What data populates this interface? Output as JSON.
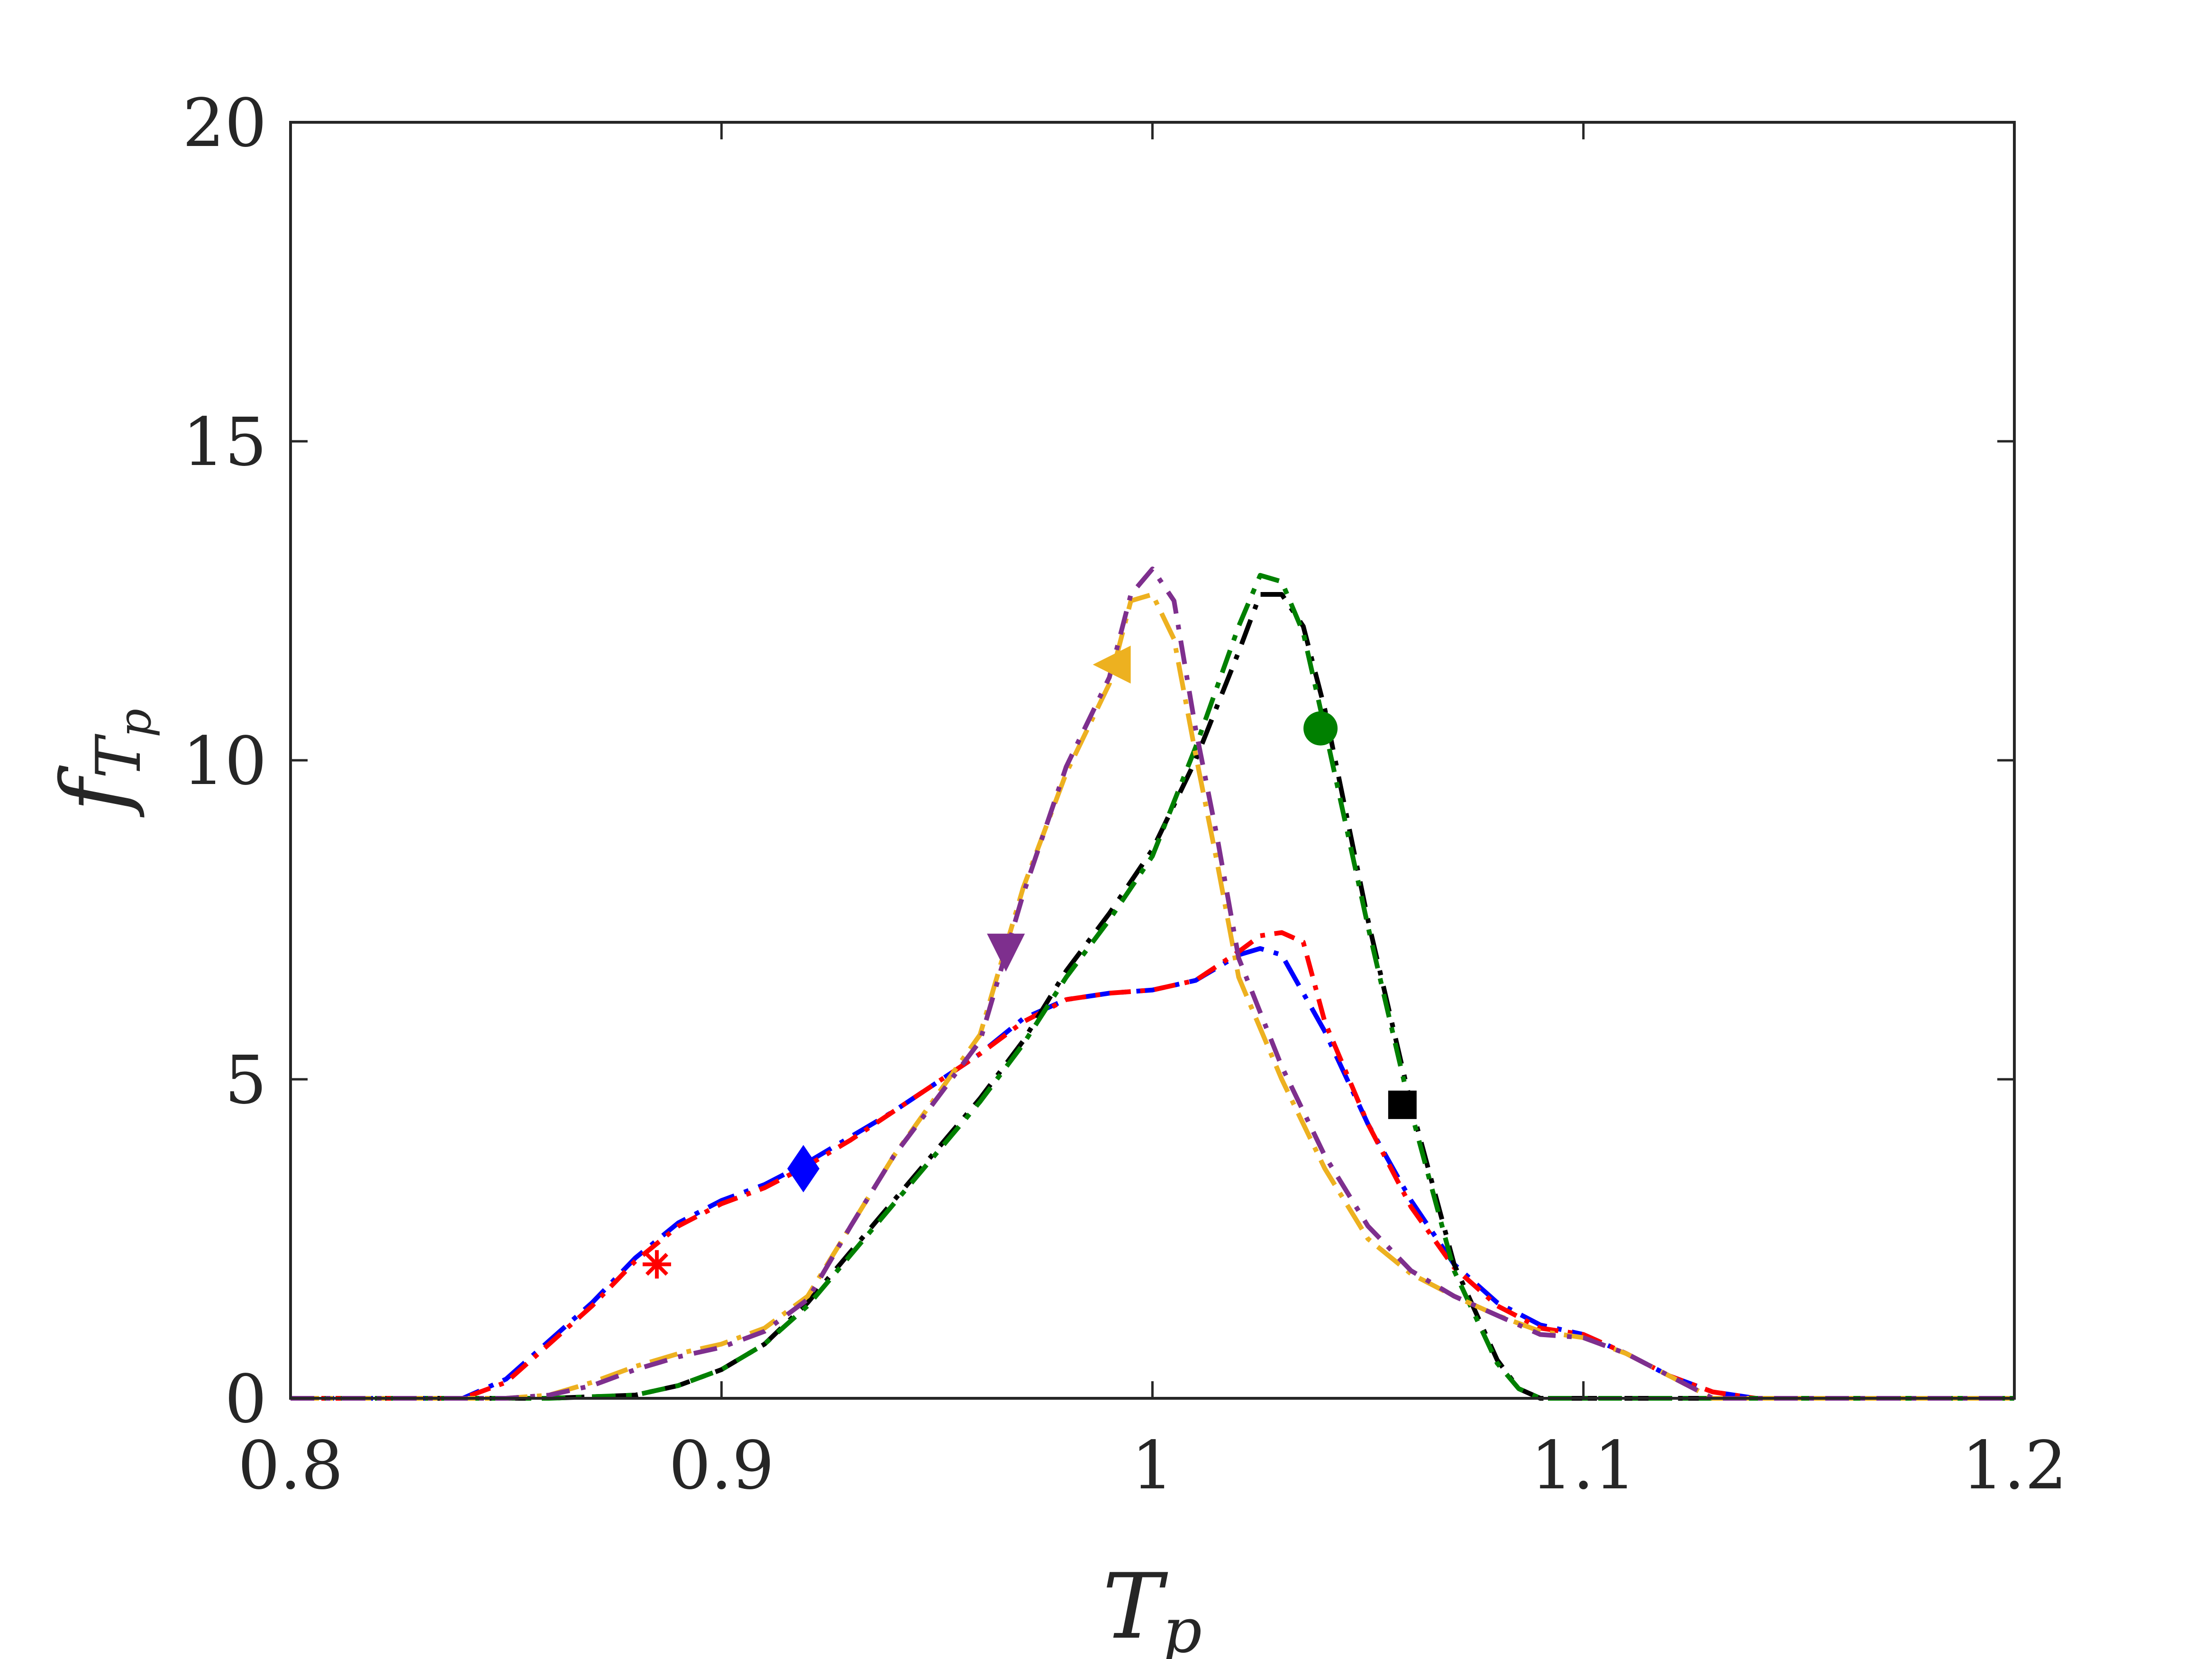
{
  "chart_data": {
    "type": "line",
    "xlabel": "T",
    "xlabel_sub": "p",
    "ylabel": "f",
    "ylabel_sub": "T",
    "ylabel_subsub": "p",
    "xlim": [
      0.8,
      1.2
    ],
    "ylim": [
      0,
      20
    ],
    "xticks": [
      0.8,
      0.9,
      1.0,
      1.1,
      1.2
    ],
    "xtick_labels": [
      "0.8",
      "0.9",
      "1",
      "1.1",
      "1.2"
    ],
    "yticks": [
      0,
      5,
      10,
      15,
      20
    ],
    "ytick_labels": [
      "0",
      "5",
      "10",
      "15",
      "20"
    ],
    "grid": false,
    "series": [
      {
        "color": "#0000ff",
        "dash": "dash-dot",
        "marker": "diamond",
        "marker_at": [
          0.919,
          3.6
        ],
        "x": [
          0.8,
          0.84,
          0.85,
          0.86,
          0.87,
          0.88,
          0.89,
          0.9,
          0.91,
          0.92,
          0.93,
          0.94,
          0.95,
          0.96,
          0.97,
          0.98,
          0.99,
          1.0,
          1.01,
          1.02,
          1.025,
          1.03,
          1.04,
          1.05,
          1.06,
          1.07,
          1.08,
          1.09,
          1.1,
          1.11,
          1.12,
          1.13,
          1.14,
          1.2
        ],
        "y": [
          0,
          0,
          0.3,
          0.9,
          1.5,
          2.2,
          2.75,
          3.1,
          3.35,
          3.7,
          4.1,
          4.5,
          4.95,
          5.4,
          5.95,
          6.25,
          6.35,
          6.4,
          6.55,
          6.95,
          7.05,
          6.95,
          5.75,
          4.3,
          3.1,
          2.1,
          1.5,
          1.15,
          1.0,
          0.7,
          0.35,
          0.1,
          0,
          0
        ]
      },
      {
        "color": "#ff0000",
        "dash": "dash-dot",
        "marker": "asterisk",
        "marker_at": [
          0.885,
          2.1
        ],
        "x": [
          0.8,
          0.84,
          0.85,
          0.86,
          0.87,
          0.88,
          0.89,
          0.9,
          0.91,
          0.92,
          0.93,
          0.94,
          0.95,
          0.96,
          0.97,
          0.98,
          0.99,
          1.0,
          1.01,
          1.02,
          1.025,
          1.03,
          1.035,
          1.04,
          1.05,
          1.06,
          1.07,
          1.08,
          1.09,
          1.1,
          1.11,
          1.12,
          1.13,
          1.14,
          1.2
        ],
        "y": [
          0,
          0,
          0.25,
          0.85,
          1.45,
          2.15,
          2.7,
          3.05,
          3.3,
          3.65,
          4.05,
          4.5,
          4.95,
          5.4,
          5.9,
          6.25,
          6.35,
          6.4,
          6.55,
          7.0,
          7.25,
          7.3,
          7.15,
          5.9,
          4.3,
          3.0,
          2.05,
          1.45,
          1.1,
          1.0,
          0.7,
          0.35,
          0.1,
          0,
          0
        ]
      },
      {
        "color": "#000000",
        "dash": "dash-dot",
        "marker": "square",
        "marker_at": [
          1.058,
          4.6
        ],
        "x": [
          0.8,
          0.86,
          0.88,
          0.89,
          0.9,
          0.91,
          0.92,
          0.93,
          0.94,
          0.95,
          0.96,
          0.97,
          0.98,
          0.99,
          1.0,
          1.01,
          1.02,
          1.025,
          1.03,
          1.035,
          1.04,
          1.05,
          1.06,
          1.07,
          1.08,
          1.085,
          1.09,
          1.2
        ],
        "y": [
          0,
          0,
          0.05,
          0.2,
          0.45,
          0.85,
          1.5,
          2.3,
          3.1,
          3.9,
          4.7,
          5.6,
          6.7,
          7.6,
          8.6,
          10.0,
          11.7,
          12.6,
          12.6,
          12.1,
          10.8,
          7.5,
          4.6,
          2.1,
          0.6,
          0.15,
          0,
          0
        ]
      },
      {
        "color": "#008000",
        "dash": "dash-dot",
        "marker": "circle",
        "marker_at": [
          1.039,
          10.5
        ],
        "x": [
          0.8,
          0.86,
          0.88,
          0.89,
          0.9,
          0.91,
          0.92,
          0.93,
          0.94,
          0.95,
          0.96,
          0.97,
          0.98,
          0.99,
          1.0,
          1.01,
          1.02,
          1.025,
          1.03,
          1.035,
          1.04,
          1.05,
          1.06,
          1.07,
          1.08,
          1.085,
          1.09,
          1.2
        ],
        "y": [
          0,
          0,
          0.05,
          0.2,
          0.45,
          0.85,
          1.45,
          2.25,
          3.05,
          3.85,
          4.65,
          5.55,
          6.6,
          7.5,
          8.5,
          10.2,
          12.1,
          12.9,
          12.8,
          12.0,
          10.5,
          7.4,
          4.5,
          2.0,
          0.55,
          0.15,
          0,
          0
        ]
      },
      {
        "color": "#edb120",
        "dash": "dash-dot",
        "marker": "triangle-left",
        "marker_at": [
          0.991,
          11.5
        ],
        "x": [
          0.8,
          0.85,
          0.86,
          0.87,
          0.88,
          0.89,
          0.9,
          0.91,
          0.92,
          0.93,
          0.94,
          0.95,
          0.96,
          0.97,
          0.98,
          0.99,
          0.995,
          1.0,
          1.005,
          1.01,
          1.015,
          1.02,
          1.03,
          1.04,
          1.05,
          1.06,
          1.07,
          1.08,
          1.09,
          1.1,
          1.11,
          1.12,
          1.13,
          1.2
        ],
        "y": [
          0,
          0,
          0.05,
          0.25,
          0.5,
          0.7,
          0.85,
          1.1,
          1.6,
          2.7,
          3.8,
          4.75,
          5.7,
          8.0,
          9.8,
          11.2,
          12.5,
          12.6,
          11.9,
          10.1,
          8.4,
          6.6,
          5.0,
          3.6,
          2.5,
          1.95,
          1.6,
          1.3,
          1.05,
          0.95,
          0.7,
          0.35,
          0,
          0
        ]
      },
      {
        "color": "#7e2f8e",
        "dash": "dash-dot",
        "marker": "triangle-down",
        "marker_at": [
          0.966,
          7.0
        ],
        "x": [
          0.8,
          0.85,
          0.86,
          0.87,
          0.88,
          0.89,
          0.9,
          0.91,
          0.92,
          0.93,
          0.94,
          0.95,
          0.96,
          0.97,
          0.98,
          0.99,
          0.995,
          1.0,
          1.005,
          1.01,
          1.015,
          1.02,
          1.03,
          1.04,
          1.05,
          1.06,
          1.07,
          1.08,
          1.09,
          1.1,
          1.11,
          1.12,
          1.13,
          1.2
        ],
        "y": [
          0,
          0,
          0.05,
          0.2,
          0.45,
          0.65,
          0.8,
          1.05,
          1.55,
          2.7,
          3.8,
          4.7,
          5.6,
          7.9,
          9.9,
          11.3,
          12.6,
          13.0,
          12.5,
          10.5,
          8.8,
          6.9,
          5.2,
          3.8,
          2.7,
          2.0,
          1.6,
          1.3,
          1.0,
          0.95,
          0.7,
          0.35,
          0,
          0
        ]
      }
    ]
  }
}
